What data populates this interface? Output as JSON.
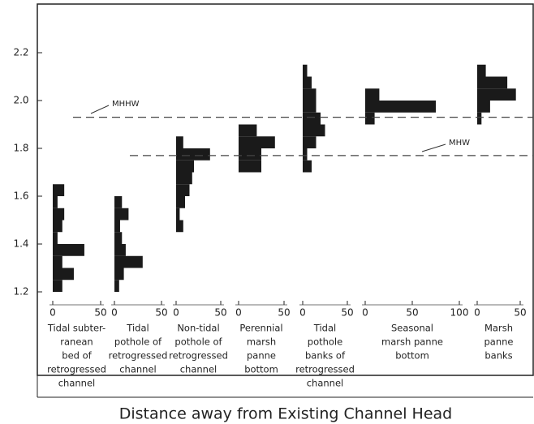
{
  "chart_data": {
    "type": "histogram-panels",
    "xlabel": "Distance away from Existing Channel Head",
    "ylim": [
      1.2,
      2.2
    ],
    "yticks": [
      1.2,
      1.4,
      1.6,
      1.8,
      2.0,
      2.2
    ],
    "yticklabels": [
      "1.2",
      "1.4",
      "1.6",
      "1.8",
      "2.0",
      "2.2"
    ],
    "color": "#1a1a1a",
    "reference_lines": [
      {
        "name": "MHHW",
        "value": 1.93
      },
      {
        "name": "MHW",
        "value": 1.77
      }
    ],
    "panels": [
      {
        "label": [
          "Tidal subter-",
          "ranean",
          "bed of",
          "retrogressed",
          "channel"
        ],
        "xlim": [
          0,
          50
        ],
        "xticks": [
          0,
          50
        ],
        "bins": [
          1.2,
          1.25,
          1.3,
          1.35,
          1.4,
          1.45,
          1.5,
          1.55,
          1.6,
          1.65
        ],
        "values": [
          10,
          22,
          10,
          33,
          5,
          10,
          12,
          5,
          12
        ]
      },
      {
        "label": [
          "Tidal",
          "pothole of",
          "retrogressed",
          "channel"
        ],
        "xlim": [
          0,
          50
        ],
        "xticks": [
          0,
          50
        ],
        "bins": [
          1.2,
          1.25,
          1.3,
          1.35,
          1.4,
          1.45,
          1.5,
          1.55,
          1.6
        ],
        "values": [
          5,
          10,
          30,
          12,
          8,
          6,
          15,
          8
        ]
      },
      {
        "label": [
          "Non-tidal",
          "pothole of",
          "retrogressed",
          "channel"
        ],
        "xlim": [
          0,
          50
        ],
        "xticks": [
          0,
          50
        ],
        "bins": [
          1.45,
          1.5,
          1.55,
          1.6,
          1.65,
          1.7,
          1.75,
          1.8,
          1.85
        ],
        "values": [
          8,
          4,
          10,
          15,
          18,
          20,
          38,
          8
        ]
      },
      {
        "label": [
          "Perennial",
          "marsh",
          "panne",
          "bottom"
        ],
        "xlim": [
          0,
          50
        ],
        "xticks": [
          0,
          50
        ],
        "bins": [
          1.7,
          1.75,
          1.8,
          1.85,
          1.9
        ],
        "values": [
          25,
          25,
          40,
          20
        ]
      },
      {
        "label": [
          "Tidal",
          "pothole",
          "banks of",
          "retrogressed",
          "channel"
        ],
        "xlim": [
          0,
          50
        ],
        "xticks": [
          0,
          50
        ],
        "bins": [
          1.7,
          1.75,
          1.8,
          1.85,
          1.9,
          1.95,
          2.0,
          2.05,
          2.1,
          2.15
        ],
        "values": [
          10,
          5,
          15,
          25,
          20,
          15,
          15,
          10,
          5
        ]
      },
      {
        "label": [
          "Seasonal",
          "marsh panne",
          "bottom"
        ],
        "xlim": [
          0,
          100
        ],
        "xticks": [
          0,
          50,
          100
        ],
        "bins": [
          1.9,
          1.95,
          2.0,
          2.05
        ],
        "values": [
          10,
          75,
          15
        ]
      },
      {
        "label": [
          "Marsh",
          "panne",
          "banks"
        ],
        "xlim": [
          0,
          50
        ],
        "xticks": [
          0,
          50
        ],
        "bins": [
          1.9,
          1.95,
          2.0,
          2.05,
          2.1,
          2.15
        ],
        "values": [
          5,
          15,
          45,
          35,
          10
        ]
      }
    ]
  }
}
